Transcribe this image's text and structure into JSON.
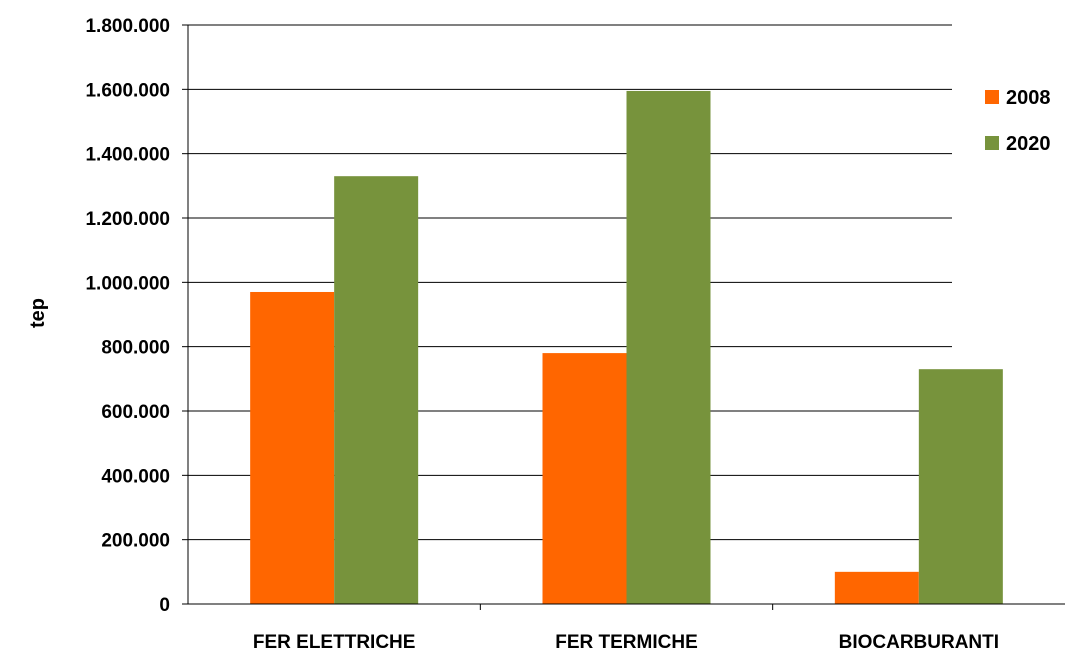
{
  "chart_data": {
    "type": "bar",
    "categories": [
      "FER ELETTRICHE",
      "FER TERMICHE",
      "BIOCARBURANTI"
    ],
    "series": [
      {
        "name": "2008",
        "values": [
          970000,
          780000,
          100000
        ],
        "color": "#ff6600"
      },
      {
        "name": "2020",
        "values": [
          1330000,
          1595000,
          730000
        ],
        "color": "#77933c"
      }
    ],
    "ylabel": "tep",
    "ylim": [
      0,
      1800000
    ],
    "yticks": [
      {
        "value": 0,
        "label": "0"
      },
      {
        "value": 200000,
        "label": "200.000"
      },
      {
        "value": 400000,
        "label": "400.000"
      },
      {
        "value": 600000,
        "label": "600.000"
      },
      {
        "value": 800000,
        "label": "800.000"
      },
      {
        "value": 1000000,
        "label": "1.000.000"
      },
      {
        "value": 1200000,
        "label": "1.200.000"
      },
      {
        "value": 1400000,
        "label": "1.400.000"
      },
      {
        "value": 1600000,
        "label": "1.600.000"
      },
      {
        "value": 1800000,
        "label": "1.800.000"
      }
    ],
    "grid": true,
    "legend": "top-right"
  }
}
